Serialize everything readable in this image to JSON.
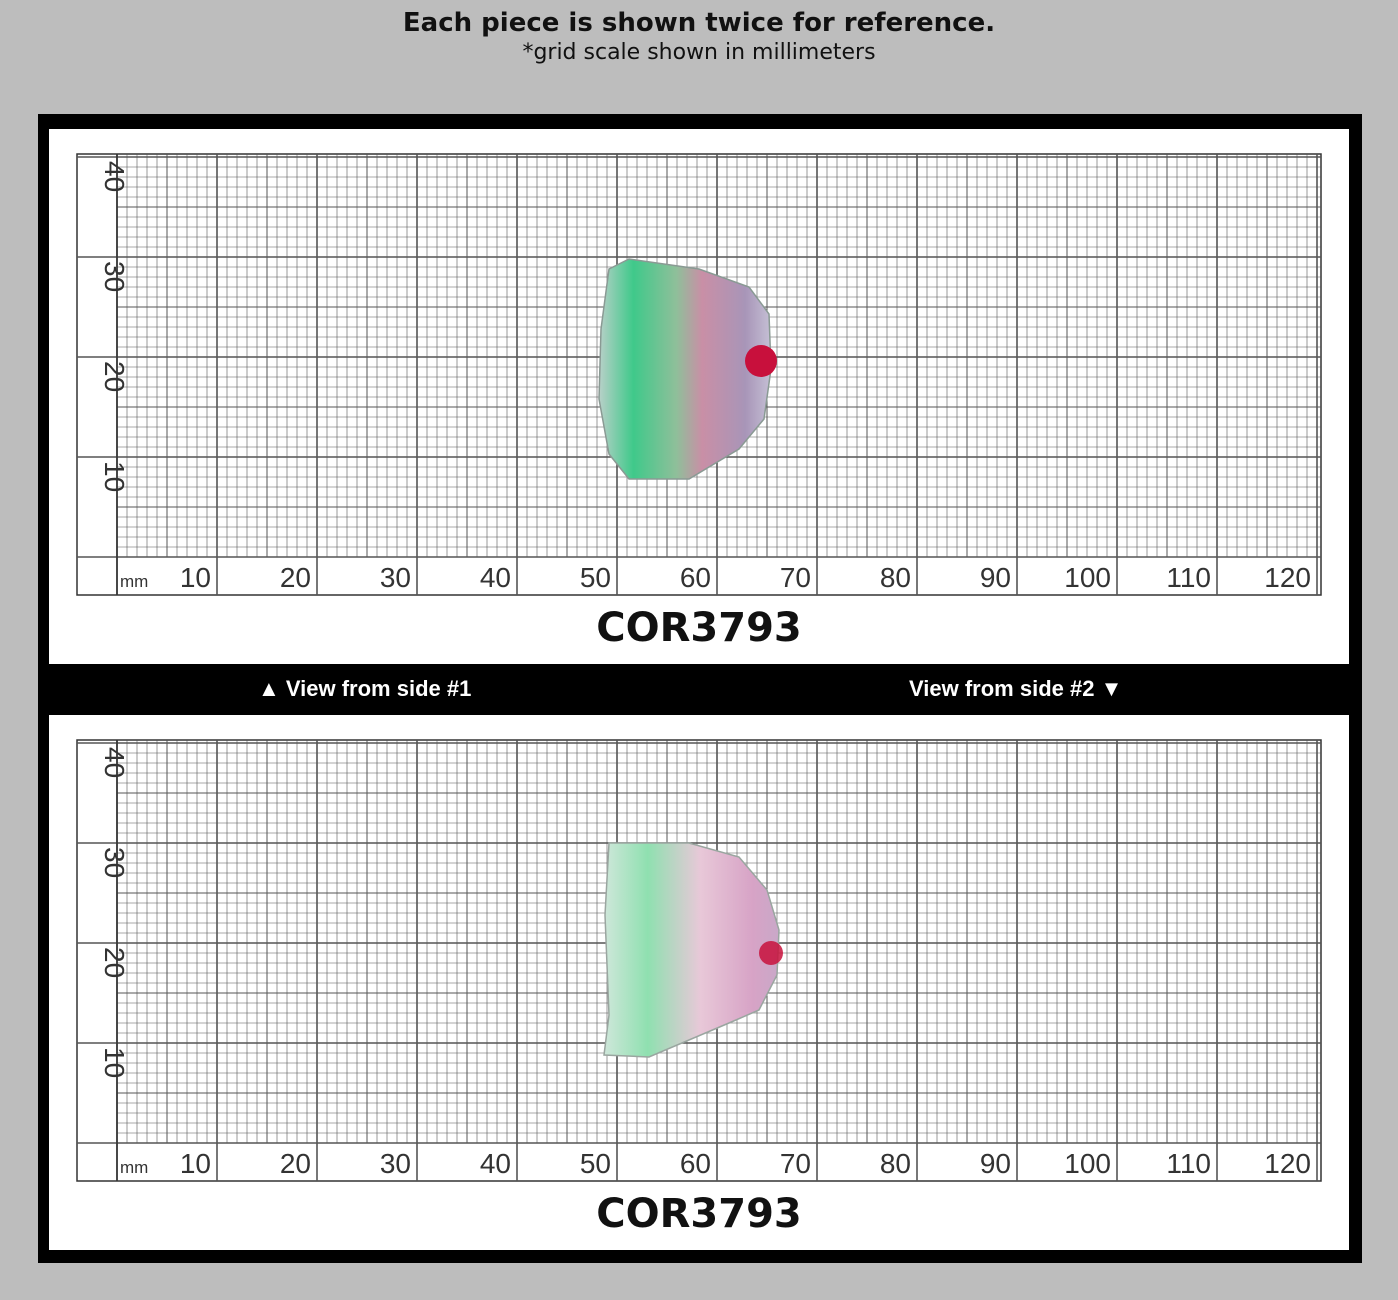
{
  "header": {
    "title": "Each piece is shown twice for reference.",
    "subtitle": "*grid scale shown in millimeters"
  },
  "grid": {
    "unit_label": "mm",
    "x_ticks": [
      "10",
      "20",
      "30",
      "40",
      "50",
      "60",
      "70",
      "80",
      "90",
      "100",
      "110",
      "120"
    ],
    "y_ticks": [
      "10",
      "20",
      "30",
      "40"
    ]
  },
  "views": [
    {
      "code": "COR3793",
      "label": "▲ View from side #1"
    },
    {
      "code": "COR3793",
      "label": "View from side #2 ▼"
    }
  ],
  "colors": {
    "background": "#bdbdbd",
    "frame": "#000000",
    "grid_line": "#555555",
    "stone_green": "#3fc98a",
    "stone_pink": "#c98fa6",
    "stone_red": "#c8103c"
  }
}
